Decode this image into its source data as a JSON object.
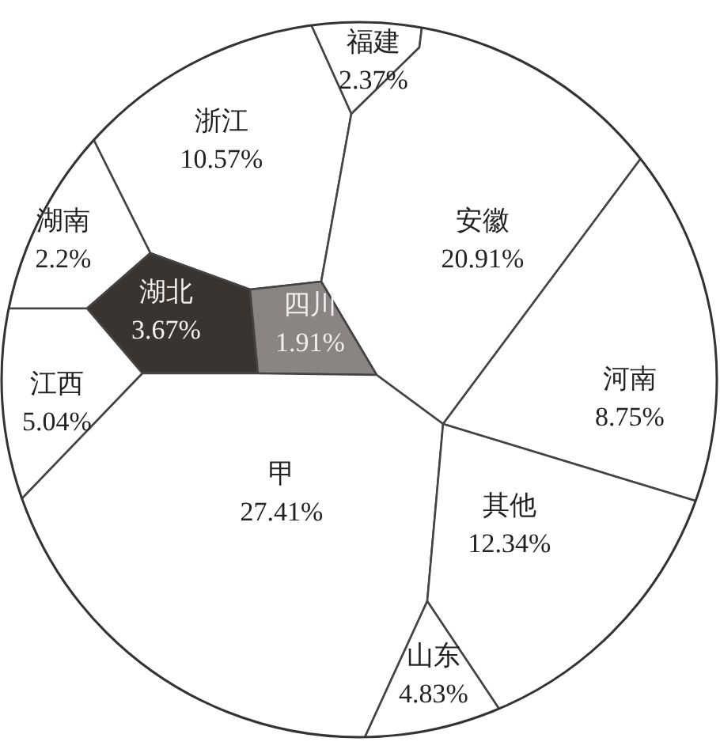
{
  "chart_data": {
    "type": "other",
    "categories": [
      "福建",
      "浙江",
      "安徽",
      "湖南",
      "湖北",
      "四川",
      "江西",
      "河南",
      "甲",
      "其他",
      "山东"
    ],
    "values": [
      2.37,
      10.57,
      20.91,
      2.2,
      3.67,
      1.91,
      5.04,
      8.75,
      27.41,
      12.34,
      4.83
    ],
    "value_labels": [
      "2.37%",
      "10.57%",
      "20.91%",
      "2.2%",
      "3.67%",
      "1.91%",
      "5.04%",
      "8.75%",
      "27.41%",
      "12.34%",
      "4.83%"
    ],
    "colors": [
      "#ffffff",
      "#ffffff",
      "#ffffff",
      "#ffffff",
      "#3a3430",
      "#8a8583",
      "#ffffff",
      "#ffffff",
      "#ffffff",
      "#ffffff",
      "#ffffff"
    ]
  }
}
